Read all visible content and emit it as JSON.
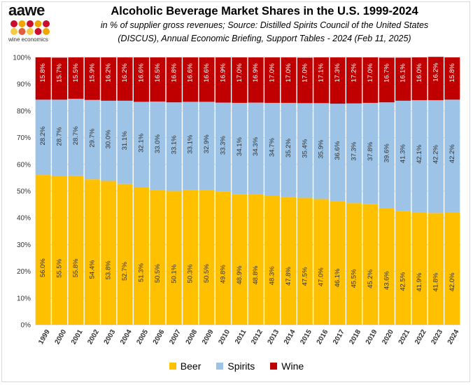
{
  "logo": {
    "word": "aawe",
    "tagline": "wine economics",
    "dot_colors": [
      "#c8102e",
      "#f0a500",
      "#c8102e",
      "#f0a500",
      "#c8102e",
      "#f7c948",
      "#e35d3a",
      "#f7c948",
      "#c8102e",
      "#f0a500"
    ]
  },
  "header": {
    "title": "Alcoholic Beverage Market Shares in the U.S. 1999-2024",
    "subtitle_line1": "in % of supplier gross revenues; Source: Distilled Spirits Council of the United States",
    "subtitle_line2": "(DISCUS), Annual Economic Briefing, Support Tables - 2024 (Feb 11, 2025)"
  },
  "colors": {
    "beer": "#ffc000",
    "spirits": "#9dc3e6",
    "wine": "#c00000",
    "grid": "#d9d9d9",
    "axis_text": "#333333"
  },
  "chart_data": {
    "type": "bar",
    "stacked": true,
    "percent_stacked": true,
    "categories": [
      "1999",
      "2000",
      "2001",
      "2002",
      "2003",
      "2004",
      "2005",
      "2006",
      "2007",
      "2008",
      "2009",
      "2010",
      "2011",
      "2012",
      "2013",
      "2014",
      "2015",
      "2016",
      "2017",
      "2018",
      "2019",
      "2020",
      "2021",
      "2022",
      "2023",
      "2024"
    ],
    "series": [
      {
        "name": "Beer",
        "values": [
          56.0,
          55.5,
          55.8,
          54.4,
          53.8,
          52.7,
          51.3,
          50.5,
          50.1,
          50.3,
          50.5,
          49.8,
          48.9,
          48.8,
          48.3,
          47.8,
          47.5,
          47.0,
          46.1,
          45.5,
          45.2,
          43.6,
          42.5,
          41.9,
          41.8,
          42.0
        ]
      },
      {
        "name": "Spirits",
        "values": [
          28.2,
          28.7,
          28.7,
          29.7,
          30.0,
          31.1,
          32.1,
          33.0,
          33.1,
          33.1,
          32.9,
          33.3,
          34.1,
          34.3,
          34.7,
          35.2,
          35.4,
          35.9,
          36.6,
          37.3,
          37.8,
          39.6,
          41.3,
          42.1,
          42.2,
          42.2
        ]
      },
      {
        "name": "Wine",
        "values": [
          15.8,
          15.7,
          15.5,
          15.9,
          16.2,
          16.2,
          16.6,
          16.5,
          16.8,
          16.6,
          16.6,
          16.9,
          17.0,
          16.9,
          17.0,
          17.0,
          17.0,
          17.1,
          17.3,
          17.2,
          17.0,
          16.7,
          16.1,
          16.0,
          16.2,
          15.8
        ]
      }
    ],
    "y_ticks": [
      "0%",
      "10%",
      "20%",
      "30%",
      "40%",
      "50%",
      "60%",
      "70%",
      "80%",
      "90%",
      "100%"
    ],
    "ylim": [
      0,
      100
    ],
    "grid": true,
    "legend_position": "bottom",
    "title": "Alcoholic Beverage Market Shares in the U.S. 1999-2024",
    "xlabel": "",
    "ylabel": ""
  }
}
